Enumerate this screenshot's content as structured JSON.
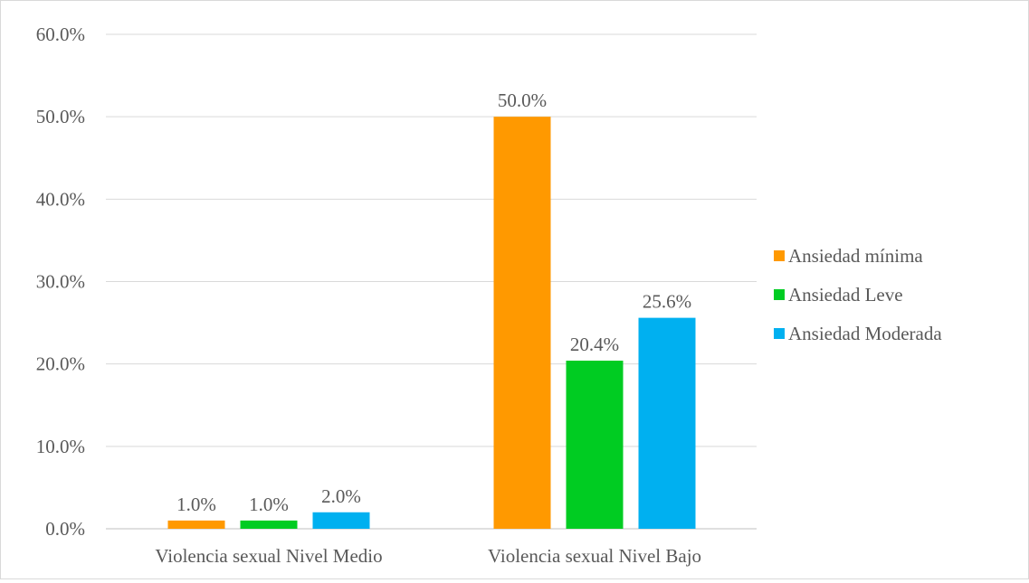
{
  "chart_data": {
    "type": "bar",
    "categories": [
      "Violencia sexual Nivel Medio",
      "Violencia sexual Nivel Bajo"
    ],
    "series": [
      {
        "name": "Ansiedad mínima",
        "color": "#ff9900",
        "values": [
          1.0,
          50.0
        ]
      },
      {
        "name": "Ansiedad Leve",
        "color": "#00cc22",
        "values": [
          1.0,
          20.4
        ]
      },
      {
        "name": "Ansiedad Moderada",
        "color": "#00b0f0",
        "values": [
          2.0,
          25.6
        ]
      }
    ],
    "value_labels": [
      [
        "1.0%",
        "50.0%"
      ],
      [
        "1.0%",
        "20.4%"
      ],
      [
        "2.0%",
        "25.6%"
      ]
    ],
    "y_ticks": [
      "0.0%",
      "10.0%",
      "20.0%",
      "30.0%",
      "40.0%",
      "50.0%",
      "60.0%"
    ],
    "ylim": [
      0,
      60
    ],
    "title": "",
    "xlabel": "",
    "ylabel": "",
    "grid": true,
    "legend_position": "right"
  }
}
